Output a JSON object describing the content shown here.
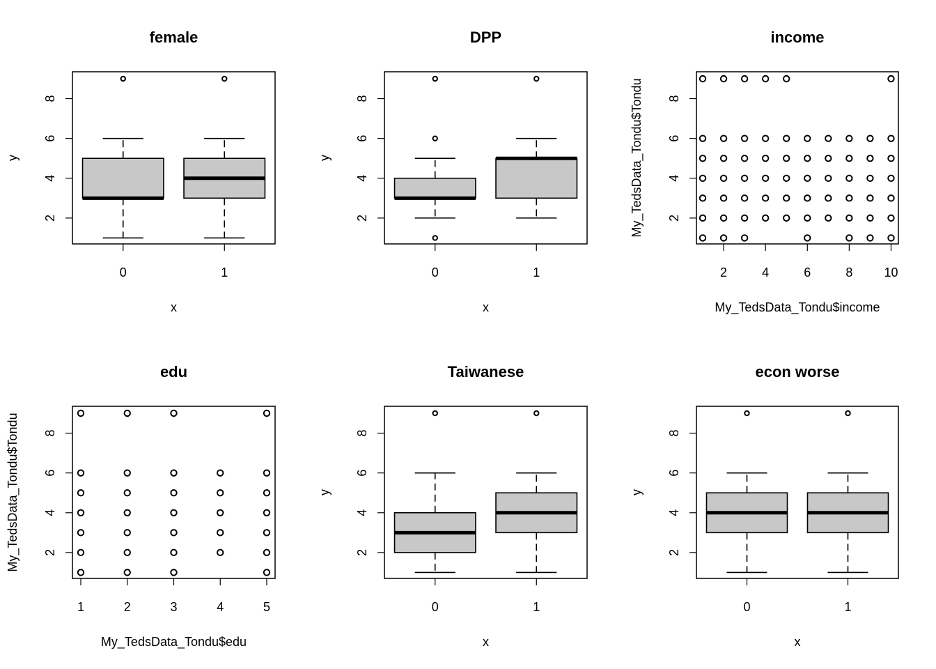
{
  "chart_data": [
    {
      "type": "box",
      "title": "female",
      "xlabel": "x",
      "ylabel": "y",
      "categories": [
        "0",
        "1"
      ],
      "ylim": [
        0.7,
        9.35
      ],
      "yticks": [
        "2",
        "4",
        "6",
        "8"
      ],
      "boxes": [
        {
          "category": "0",
          "whisker_low": 1,
          "q1": 3,
          "median": 3,
          "q3": 5,
          "whisker_high": 6,
          "outliers": [
            9
          ]
        },
        {
          "category": "1",
          "whisker_low": 1,
          "q1": 3,
          "median": 4,
          "q3": 5,
          "whisker_high": 6,
          "outliers": [
            9
          ]
        }
      ],
      "box_fill": "#c8c8c8"
    },
    {
      "type": "box",
      "title": "DPP",
      "xlabel": "x",
      "ylabel": "y",
      "categories": [
        "0",
        "1"
      ],
      "ylim": [
        0.7,
        9.35
      ],
      "yticks": [
        "2",
        "4",
        "6",
        "8"
      ],
      "boxes": [
        {
          "category": "0",
          "whisker_low": 2,
          "q1": 3,
          "median": 3,
          "q3": 4,
          "whisker_high": 5,
          "outliers": [
            1,
            6,
            9
          ]
        },
        {
          "category": "1",
          "whisker_low": 2,
          "q1": 3,
          "median": 5,
          "q3": 5,
          "whisker_high": 6,
          "outliers": [
            9
          ]
        }
      ],
      "box_fill": "#c8c8c8"
    },
    {
      "type": "scatter",
      "title": "income",
      "xlabel": "My_TedsData_Tondu$income",
      "ylabel": "My_TedsData_Tondu$Tondu",
      "xlim": [
        0.7,
        10.35
      ],
      "ylim": [
        0.7,
        9.35
      ],
      "xticks": [
        "2",
        "4",
        "6",
        "8",
        "10"
      ],
      "yticks": [
        "2",
        "4",
        "6",
        "8"
      ],
      "points": [
        [
          1,
          1
        ],
        [
          2,
          1
        ],
        [
          3,
          1
        ],
        [
          6,
          1
        ],
        [
          8,
          1
        ],
        [
          9,
          1
        ],
        [
          10,
          1
        ],
        [
          1,
          2
        ],
        [
          2,
          2
        ],
        [
          3,
          2
        ],
        [
          4,
          2
        ],
        [
          5,
          2
        ],
        [
          6,
          2
        ],
        [
          7,
          2
        ],
        [
          8,
          2
        ],
        [
          9,
          2
        ],
        [
          10,
          2
        ],
        [
          1,
          3
        ],
        [
          2,
          3
        ],
        [
          3,
          3
        ],
        [
          4,
          3
        ],
        [
          5,
          3
        ],
        [
          6,
          3
        ],
        [
          7,
          3
        ],
        [
          8,
          3
        ],
        [
          9,
          3
        ],
        [
          10,
          3
        ],
        [
          1,
          4
        ],
        [
          2,
          4
        ],
        [
          3,
          4
        ],
        [
          4,
          4
        ],
        [
          5,
          4
        ],
        [
          6,
          4
        ],
        [
          7,
          4
        ],
        [
          8,
          4
        ],
        [
          9,
          4
        ],
        [
          10,
          4
        ],
        [
          1,
          5
        ],
        [
          2,
          5
        ],
        [
          3,
          5
        ],
        [
          4,
          5
        ],
        [
          5,
          5
        ],
        [
          6,
          5
        ],
        [
          7,
          5
        ],
        [
          8,
          5
        ],
        [
          9,
          5
        ],
        [
          10,
          5
        ],
        [
          1,
          6
        ],
        [
          2,
          6
        ],
        [
          3,
          6
        ],
        [
          4,
          6
        ],
        [
          5,
          6
        ],
        [
          6,
          6
        ],
        [
          7,
          6
        ],
        [
          8,
          6
        ],
        [
          9,
          6
        ],
        [
          10,
          6
        ],
        [
          1,
          9
        ],
        [
          2,
          9
        ],
        [
          3,
          9
        ],
        [
          4,
          9
        ],
        [
          5,
          9
        ],
        [
          10,
          9
        ]
      ]
    },
    {
      "type": "scatter",
      "title": "edu",
      "xlabel": "My_TedsData_Tondu$edu",
      "ylabel": "My_TedsData_Tondu$Tondu",
      "xlim": [
        0.82,
        5.18
      ],
      "ylim": [
        0.7,
        9.35
      ],
      "xticks": [
        "1",
        "2",
        "3",
        "4",
        "5"
      ],
      "yticks": [
        "2",
        "4",
        "6",
        "8"
      ],
      "points": [
        [
          1,
          1
        ],
        [
          2,
          1
        ],
        [
          3,
          1
        ],
        [
          5,
          1
        ],
        [
          1,
          2
        ],
        [
          2,
          2
        ],
        [
          3,
          2
        ],
        [
          4,
          2
        ],
        [
          5,
          2
        ],
        [
          1,
          3
        ],
        [
          2,
          3
        ],
        [
          3,
          3
        ],
        [
          4,
          3
        ],
        [
          5,
          3
        ],
        [
          1,
          4
        ],
        [
          2,
          4
        ],
        [
          3,
          4
        ],
        [
          4,
          4
        ],
        [
          5,
          4
        ],
        [
          1,
          5
        ],
        [
          2,
          5
        ],
        [
          3,
          5
        ],
        [
          4,
          5
        ],
        [
          5,
          5
        ],
        [
          1,
          6
        ],
        [
          2,
          6
        ],
        [
          3,
          6
        ],
        [
          4,
          6
        ],
        [
          5,
          6
        ],
        [
          1,
          9
        ],
        [
          2,
          9
        ],
        [
          3,
          9
        ],
        [
          5,
          9
        ]
      ]
    },
    {
      "type": "box",
      "title": "Taiwanese",
      "xlabel": "x",
      "ylabel": "y",
      "categories": [
        "0",
        "1"
      ],
      "ylim": [
        0.7,
        9.35
      ],
      "yticks": [
        "2",
        "4",
        "6",
        "8"
      ],
      "boxes": [
        {
          "category": "0",
          "whisker_low": 1,
          "q1": 2,
          "median": 3,
          "q3": 4,
          "whisker_high": 6,
          "outliers": [
            9
          ]
        },
        {
          "category": "1",
          "whisker_low": 1,
          "q1": 3,
          "median": 4,
          "q3": 5,
          "whisker_high": 6,
          "outliers": [
            9
          ]
        }
      ],
      "box_fill": "#c8c8c8"
    },
    {
      "type": "box",
      "title": "econ worse",
      "xlabel": "x",
      "ylabel": "y",
      "categories": [
        "0",
        "1"
      ],
      "ylim": [
        0.7,
        9.35
      ],
      "yticks": [
        "2",
        "4",
        "6",
        "8"
      ],
      "boxes": [
        {
          "category": "0",
          "whisker_low": 1,
          "q1": 3,
          "median": 4,
          "q3": 5,
          "whisker_high": 6,
          "outliers": [
            9
          ]
        },
        {
          "category": "1",
          "whisker_low": 1,
          "q1": 3,
          "median": 4,
          "q3": 5,
          "whisker_high": 6,
          "outliers": [
            9
          ]
        }
      ],
      "box_fill": "#c8c8c8"
    }
  ]
}
